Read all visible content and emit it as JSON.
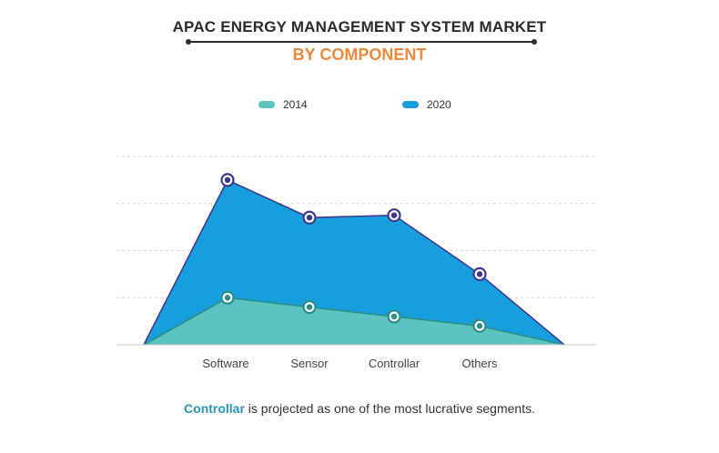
{
  "header": {
    "title": "APAC ENERGY MANAGEMENT SYSTEM MARKET",
    "subtitle": "BY COMPONENT"
  },
  "caption": {
    "highlight": "Controllar",
    "rest": " is projected as one of the most lucrative segments."
  },
  "colors": {
    "title": "#2b2b2b",
    "subtitle": "#ef8a3c",
    "highlight": "#2a95b5",
    "series_2014_fill": "#5bc3c0",
    "series_2014_line": "#2a8f87",
    "series_2020_fill": "#169fdd",
    "series_2020_line": "#3e3a92",
    "grid": "#d6d6d6"
  },
  "chart_data": {
    "type": "area",
    "title": "APAC ENERGY MANAGEMENT SYSTEM MARKET",
    "subtitle": "BY COMPONENT",
    "categories": [
      "Software",
      "Sensor",
      "Controllar",
      "Others"
    ],
    "series": [
      {
        "name": "2014",
        "values": [
          1.0,
          0.8,
          0.6,
          0.4
        ],
        "color": "#5bc3c0",
        "line": "#2a8f87"
      },
      {
        "name": "2020",
        "values": [
          3.5,
          2.7,
          2.75,
          1.5
        ],
        "color": "#169fdd",
        "line": "#3e3a92"
      }
    ],
    "ylim": [
      0,
      4
    ],
    "grid": true,
    "y_axis_labels": false,
    "legend": "top-center"
  }
}
